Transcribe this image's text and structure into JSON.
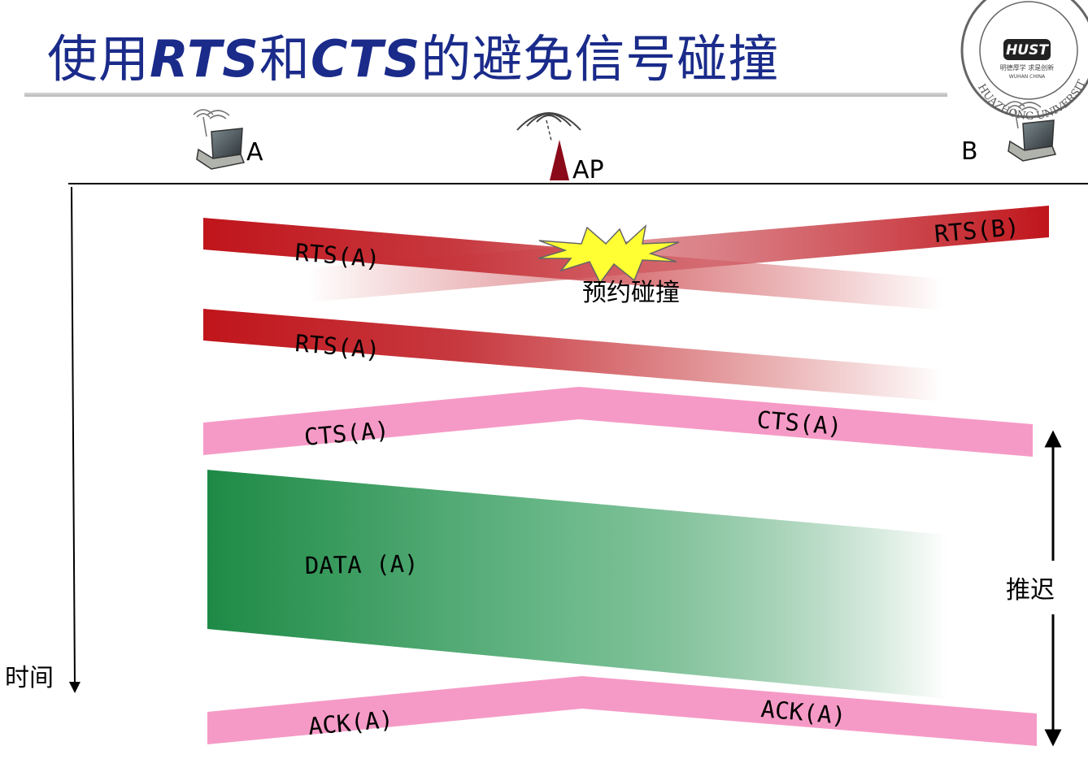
{
  "title": {
    "prefix": "使用",
    "rts": "RTS",
    "mid": "和",
    "cts": "CTS",
    "suffix": "的避免信号碰撞"
  },
  "logo": {
    "arc_text": "HUAZHONG UNIVERSITY OF SCIENCE",
    "mark": "HUST",
    "motto": "明德厚学 求是创新",
    "city": "WUHAN CHINA"
  },
  "nodes": {
    "a": "A",
    "ap": "AP",
    "b": "B"
  },
  "axis": {
    "time_label": "时间"
  },
  "messages": {
    "rts_a_1": "RTS(A)",
    "rts_b": "RTS(B)",
    "collision": "预约碰撞",
    "rts_a_2": "RTS(A)",
    "cts_a_left": "CTS(A)",
    "cts_a_right": "CTS(A)",
    "data_a": "DATA (A)",
    "ack_a_left": "ACK(A)",
    "ack_a_right": "ACK(A)"
  },
  "defer": {
    "label": "推迟"
  },
  "colors": {
    "title": "#1a2b8a",
    "rts": "#c0151b",
    "cts": "#f59ac6",
    "data": "#1e8a46",
    "burst": "#ffff33",
    "ap": "#8b0a1a"
  }
}
